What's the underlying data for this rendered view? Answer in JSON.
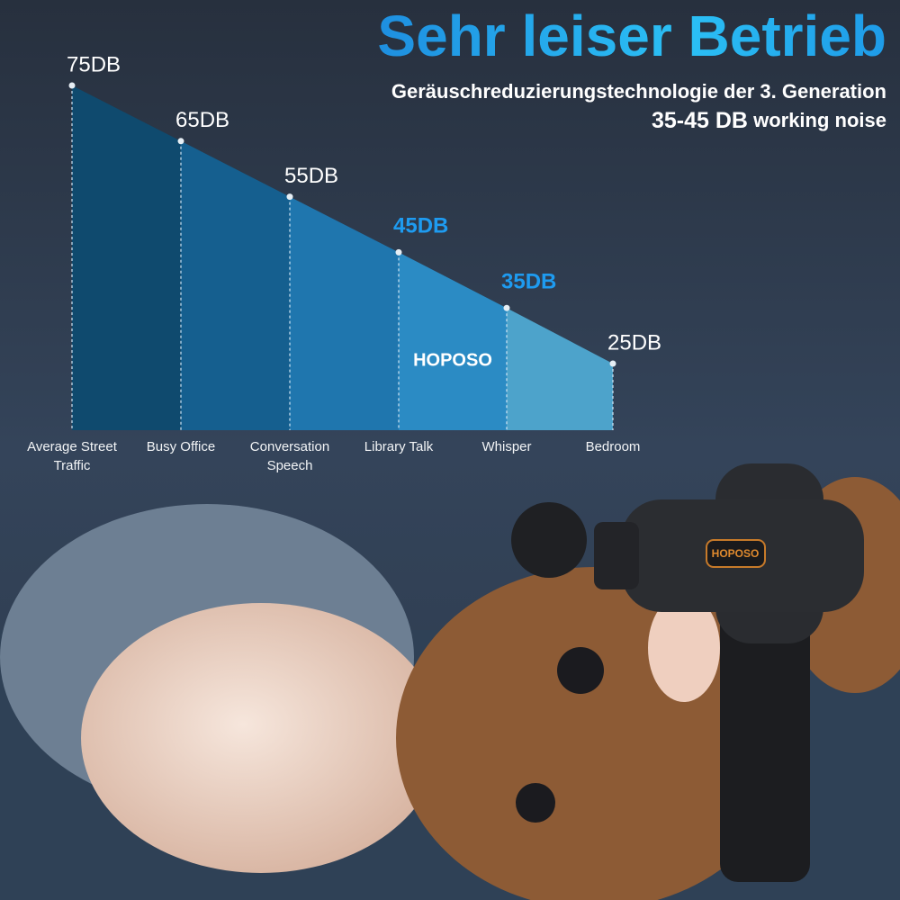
{
  "chart_data": {
    "type": "area",
    "title": "Sehr leiser Betrieb",
    "subtitle": "Geräuschreduzierungstechnologie der 3. Generation",
    "annotations": [
      "35-45 DB",
      "working noise",
      "HOPOSO"
    ],
    "categories": [
      "Average Street Traffic",
      "Busy Office",
      "Conversation Speech",
      "Library Talk",
      "Whisper",
      "Bedroom"
    ],
    "values": [
      75,
      65,
      55,
      45,
      35,
      25
    ],
    "value_labels": [
      "75DB",
      "65DB",
      "55DB",
      "45DB",
      "35DB",
      "25DB"
    ],
    "label_colors": [
      "#ffffff",
      "#ffffff",
      "#ffffff",
      "#1e9bf0",
      "#1e9bf0",
      "#ffffff"
    ],
    "segment_colors": [
      "#0f4a6e",
      "#155f8f",
      "#1f76ae",
      "#2b8bc4",
      "#4da3cb"
    ]
  }
}
